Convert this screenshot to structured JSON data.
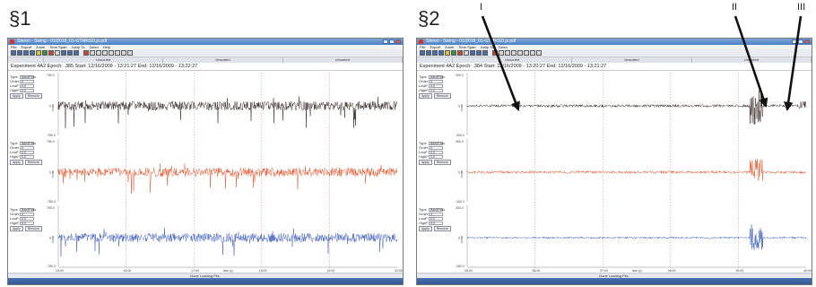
{
  "panels": [
    {
      "label": "§1",
      "window": {
        "title": "Stereo - Swing - 01/2018_01-GTMRSD.js.pdf",
        "menu": [
          "File",
          "Export",
          "Zoom",
          "Time Span",
          "Jump To",
          "Zoom",
          "Help"
        ],
        "tabs": [
          "",
          "Unsorted",
          "Unsorted",
          "Unsorted"
        ],
        "info": "Experiment 4A2 Epoch: .385 Start: 12/16/2009 - 13:21:27 End: 12/16/2009 - 13:22:27",
        "status": "Done Loading File."
      },
      "controls": {
        "type_label": "Type",
        "type_value": "BandPass",
        "order_label": "Order",
        "order_value": "4",
        "lowf_label": "LowF",
        "lowf_value": "0.0",
        "highf_label": "HighF",
        "highf_value": "0.0",
        "apply_label": "Apply",
        "remove_label": "Remove"
      },
      "channels": [
        {
          "color": "#2b1f1a",
          "top_tick": "750.0",
          "mid_tick": "0.0",
          "bot_tick": "-750.0",
          "ylabel": "Chn 1"
        },
        {
          "color": "#e0542b",
          "top_tick": "750.0",
          "mid_tick": "0.0",
          "bot_tick": "-750.0",
          "ylabel": "Chn 2"
        },
        {
          "color": "#3b5bb8",
          "top_tick": "750.0",
          "mid_tick": "0.0",
          "bot_tick": "-750.0",
          "ylabel": "Chn 3"
        }
      ],
      "x_ticks": [
        "15:00",
        "16:00",
        "17:00",
        "18:00",
        "19:00",
        "20:00"
      ],
      "x_label": "time (s)"
    },
    {
      "label": "§2",
      "window": {
        "title": "Stereo - Swing - 01/2018_01-GTMRSD.js.pdf",
        "menu": [
          "File",
          "Export",
          "Zoom",
          "Time Span",
          "Jump To",
          "Zoom"
        ],
        "tabs": [
          "",
          "Unsorted",
          "Unsorted",
          "Unsorted"
        ],
        "info": "Experiment 4A2 Epoch: .384 Start: 12/16/2009 - 13:20:27 End: 12/16/2009 - 13:21:27",
        "status": "Done Loading File."
      },
      "controls": {
        "type_label": "Type",
        "type_value": "BandPass",
        "order_label": "Order",
        "order_value": "4",
        "lowf_label": "LowF",
        "lowf_value": "0.0",
        "highf_label": "HighF",
        "highf_value": "0.0",
        "apply_label": "Apply",
        "remove_label": "Remove"
      },
      "channels": [
        {
          "color": "#2b1f1a",
          "top_tick": "300.0",
          "mid_tick": "0.0",
          "bot_tick": "-300.0",
          "ylabel": "Chn 1"
        },
        {
          "color": "#e0542b",
          "top_tick": "300.0",
          "mid_tick": "0.0",
          "bot_tick": "-300.0",
          "ylabel": "Chn 2"
        },
        {
          "color": "#3b5bb8",
          "top_tick": "300.0",
          "mid_tick": "0.0",
          "bot_tick": "-300.0",
          "ylabel": "Chn 3"
        }
      ],
      "x_ticks": [
        "35:00",
        "36:00",
        "37:00",
        "38:00",
        "39:00",
        "40:00"
      ],
      "x_label": "time (s)",
      "annotations": [
        {
          "text": "I"
        },
        {
          "text": "II"
        },
        {
          "text": "III"
        }
      ]
    }
  ]
}
